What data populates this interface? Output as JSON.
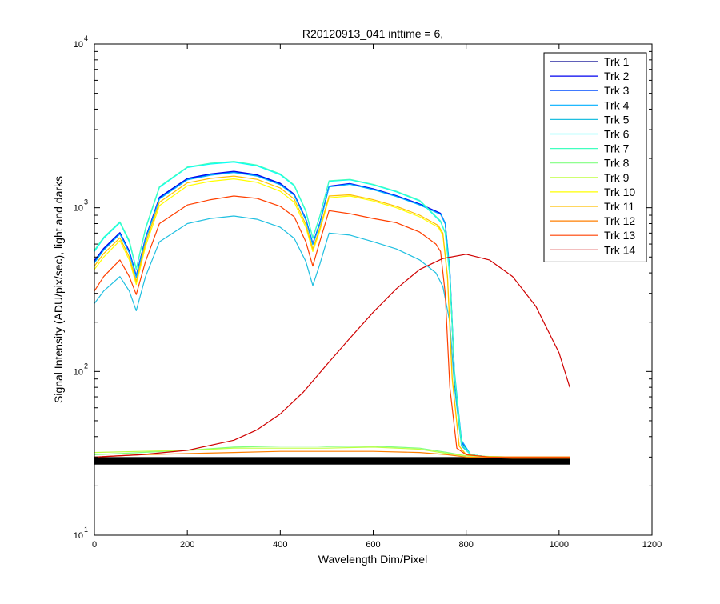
{
  "chart_data": {
    "type": "line",
    "title": "R20120913_041 inttime = 6,",
    "xlabel": "Wavelength Dim/Pixel",
    "ylabel": "Signal Intensity (ADU/pix/sec), light and darks",
    "xlim": [
      0,
      1200
    ],
    "ylim": [
      10,
      10000
    ],
    "yscale": "log",
    "grid": false,
    "legend_position": "top-right",
    "x_ticks": [
      {
        "value": 0,
        "label": "0"
      },
      {
        "value": 200,
        "label": "200"
      },
      {
        "value": 400,
        "label": "400"
      },
      {
        "value": 600,
        "label": "600"
      },
      {
        "value": 800,
        "label": "800"
      },
      {
        "value": 1000,
        "label": "1000"
      },
      {
        "value": 1200,
        "label": "1200"
      }
    ],
    "y_ticks": [
      {
        "value": 10,
        "base": "10",
        "exp": "1"
      },
      {
        "value": 100,
        "base": "10",
        "exp": "2"
      },
      {
        "value": 1000,
        "base": "10",
        "exp": "3"
      },
      {
        "value": 10000,
        "base": "10",
        "exp": "4"
      }
    ],
    "dark_band": {
      "name": "",
      "color": "#000000",
      "x": [
        0,
        1023
      ],
      "low": 27,
      "high": 30
    },
    "series": [
      {
        "name": "Trk 1",
        "color": "#00008f",
        "x": [
          0,
          20,
          55,
          75,
          90,
          110,
          140,
          200,
          250,
          300,
          350,
          400,
          430,
          455,
          470,
          485,
          505,
          550,
          600,
          650,
          700,
          745,
          755,
          765,
          775,
          790,
          810,
          850,
          900,
          950,
          1023
        ],
        "y": [
          470,
          560,
          700,
          540,
          380,
          650,
          1150,
          1500,
          1600,
          1660,
          1580,
          1400,
          1200,
          850,
          600,
          800,
          1350,
          1400,
          1300,
          1180,
          1050,
          920,
          800,
          400,
          90,
          36,
          31,
          30,
          30,
          30,
          30
        ]
      },
      {
        "name": "Trk 2",
        "color": "#0000ef",
        "x": [
          0,
          20,
          55,
          75,
          90,
          110,
          140,
          200,
          250,
          300,
          350,
          400,
          430,
          455,
          470,
          485,
          505,
          550,
          600,
          650,
          700,
          745,
          755,
          765,
          775,
          790,
          810,
          850,
          900,
          950,
          1023
        ],
        "y": [
          475,
          565,
          705,
          545,
          385,
          655,
          1160,
          1510,
          1610,
          1670,
          1590,
          1410,
          1210,
          855,
          605,
          805,
          1355,
          1405,
          1305,
          1185,
          1055,
          925,
          805,
          405,
          92,
          36,
          31,
          30,
          30,
          30,
          30
        ]
      },
      {
        "name": "Trk 3",
        "color": "#004fff",
        "x": [
          0,
          20,
          55,
          75,
          90,
          110,
          140,
          200,
          250,
          300,
          350,
          400,
          430,
          455,
          470,
          485,
          505,
          550,
          600,
          650,
          700,
          745,
          755,
          765,
          775,
          790,
          810,
          850,
          900,
          950,
          1023
        ],
        "y": [
          465,
          555,
          695,
          535,
          380,
          645,
          1140,
          1490,
          1590,
          1650,
          1570,
          1390,
          1195,
          845,
          600,
          795,
          1345,
          1395,
          1295,
          1175,
          1045,
          915,
          800,
          410,
          95,
          37,
          31,
          30,
          30,
          30,
          30
        ]
      },
      {
        "name": "Trk 4",
        "color": "#00afff",
        "x": [
          0,
          20,
          55,
          75,
          90,
          110,
          140,
          200,
          250,
          300,
          350,
          400,
          430,
          455,
          470,
          485,
          505,
          550,
          600,
          650,
          700,
          745,
          755,
          765,
          775,
          790,
          810,
          850,
          900,
          950,
          1023
        ],
        "y": [
          460,
          550,
          690,
          530,
          375,
          640,
          1130,
          1480,
          1580,
          1640,
          1560,
          1380,
          1190,
          840,
          595,
          790,
          1340,
          1390,
          1290,
          1170,
          1040,
          910,
          810,
          420,
          100,
          38,
          31,
          30,
          30,
          30,
          30
        ]
      },
      {
        "name": "Trk 5",
        "color": "#1fbfe0",
        "x": [
          0,
          20,
          55,
          75,
          90,
          110,
          140,
          200,
          250,
          300,
          350,
          400,
          430,
          455,
          470,
          485,
          505,
          550,
          600,
          650,
          700,
          735,
          750,
          765,
          775,
          790,
          810,
          850,
          900,
          950,
          1023
        ],
        "y": [
          260,
          310,
          380,
          310,
          235,
          380,
          620,
          800,
          860,
          890,
          850,
          760,
          650,
          470,
          335,
          450,
          700,
          680,
          620,
          560,
          480,
          400,
          330,
          200,
          80,
          35,
          31,
          30,
          30,
          30,
          30
        ]
      },
      {
        "name": "Trk 6",
        "color": "#00ffff",
        "x": [
          0,
          20,
          55,
          75,
          90,
          110,
          140,
          200,
          250,
          300,
          350,
          400,
          430,
          455,
          470,
          485,
          505,
          550,
          600,
          650,
          700,
          745,
          755,
          765,
          775,
          790,
          810,
          850,
          900,
          950,
          1023
        ],
        "y": [
          540,
          650,
          810,
          620,
          420,
          740,
          1330,
          1760,
          1850,
          1900,
          1800,
          1590,
          1360,
          950,
          650,
          880,
          1450,
          1480,
          1380,
          1250,
          1100,
          820,
          700,
          380,
          95,
          36,
          31,
          30,
          30,
          30,
          30
        ]
      },
      {
        "name": "Trk 7",
        "color": "#40ffbf",
        "x": [
          0,
          20,
          55,
          75,
          90,
          110,
          140,
          200,
          250,
          300,
          350,
          400,
          430,
          455,
          470,
          485,
          505,
          550,
          600,
          650,
          700,
          745,
          755,
          765,
          775,
          790,
          810,
          850,
          900,
          950,
          1023
        ],
        "y": [
          550,
          660,
          820,
          630,
          425,
          750,
          1345,
          1775,
          1870,
          1920,
          1820,
          1610,
          1375,
          960,
          655,
          890,
          1460,
          1490,
          1390,
          1260,
          1110,
          830,
          705,
          385,
          96,
          36,
          31,
          30,
          30,
          30,
          30
        ]
      },
      {
        "name": "Trk 8",
        "color": "#80ff80",
        "x": [
          0,
          100,
          200,
          300,
          400,
          480,
          500,
          600,
          700,
          760,
          800,
          900,
          1023
        ],
        "y": [
          31,
          32,
          33,
          34.5,
          35,
          35,
          34.8,
          35,
          34,
          32,
          30.5,
          30,
          30
        ]
      },
      {
        "name": "Trk 9",
        "color": "#bfff40",
        "x": [
          0,
          100,
          200,
          300,
          400,
          500,
          600,
          700,
          760,
          800,
          900,
          1023
        ],
        "y": [
          32,
          32.5,
          33,
          34,
          34,
          34,
          34.5,
          33.5,
          31.5,
          30.5,
          30,
          30
        ]
      },
      {
        "name": "Trk 10",
        "color": "#ffff00",
        "x": [
          0,
          20,
          55,
          75,
          90,
          110,
          140,
          200,
          250,
          300,
          350,
          400,
          430,
          455,
          470,
          485,
          505,
          550,
          600,
          650,
          700,
          740,
          750,
          760,
          770,
          785,
          800,
          850,
          900,
          950,
          1023
        ],
        "y": [
          420,
          500,
          630,
          480,
          340,
          580,
          1030,
          1360,
          1450,
          1500,
          1430,
          1260,
          1080,
          760,
          540,
          720,
          1150,
          1180,
          1100,
          1000,
          880,
          760,
          680,
          370,
          90,
          35,
          31,
          30,
          30,
          30,
          30
        ]
      },
      {
        "name": "Trk 11",
        "color": "#ffbf00",
        "x": [
          0,
          20,
          55,
          75,
          90,
          110,
          140,
          200,
          250,
          300,
          350,
          400,
          430,
          455,
          470,
          485,
          505,
          550,
          600,
          650,
          700,
          740,
          750,
          760,
          770,
          785,
          800,
          850,
          900,
          950,
          1023
        ],
        "y": [
          440,
          525,
          655,
          500,
          355,
          610,
          1080,
          1420,
          1510,
          1560,
          1490,
          1320,
          1130,
          790,
          560,
          745,
          1180,
          1200,
          1120,
          1020,
          900,
          780,
          700,
          380,
          92,
          35,
          31,
          30,
          30,
          30,
          30
        ]
      },
      {
        "name": "Trk 12",
        "color": "#ff7f00",
        "x": [
          0,
          100,
          200,
          300,
          400,
          500,
          600,
          700,
          760,
          800,
          900,
          1023
        ],
        "y": [
          30,
          31,
          31.5,
          32,
          32.5,
          32.5,
          32.5,
          32,
          31,
          30,
          29.5,
          29.5
        ]
      },
      {
        "name": "Trk 13",
        "color": "#ff4000",
        "x": [
          0,
          20,
          55,
          75,
          90,
          110,
          140,
          200,
          250,
          300,
          350,
          400,
          430,
          455,
          470,
          485,
          505,
          550,
          600,
          650,
          700,
          735,
          745,
          755,
          765,
          780,
          800,
          850,
          900,
          950,
          1023
        ],
        "y": [
          310,
          380,
          480,
          380,
          295,
          470,
          800,
          1040,
          1120,
          1180,
          1140,
          1020,
          880,
          620,
          440,
          620,
          960,
          920,
          860,
          810,
          710,
          600,
          540,
          300,
          80,
          34,
          31,
          30,
          30,
          30,
          30
        ]
      },
      {
        "name": "Trk 14",
        "color": "#cf0000",
        "x": [
          0,
          100,
          200,
          300,
          350,
          400,
          450,
          500,
          550,
          600,
          650,
          700,
          750,
          800,
          850,
          900,
          950,
          1000,
          1023
        ],
        "y": [
          30,
          31,
          33,
          38,
          44,
          55,
          75,
          110,
          160,
          230,
          320,
          420,
          490,
          520,
          480,
          380,
          250,
          130,
          80
        ]
      }
    ]
  }
}
